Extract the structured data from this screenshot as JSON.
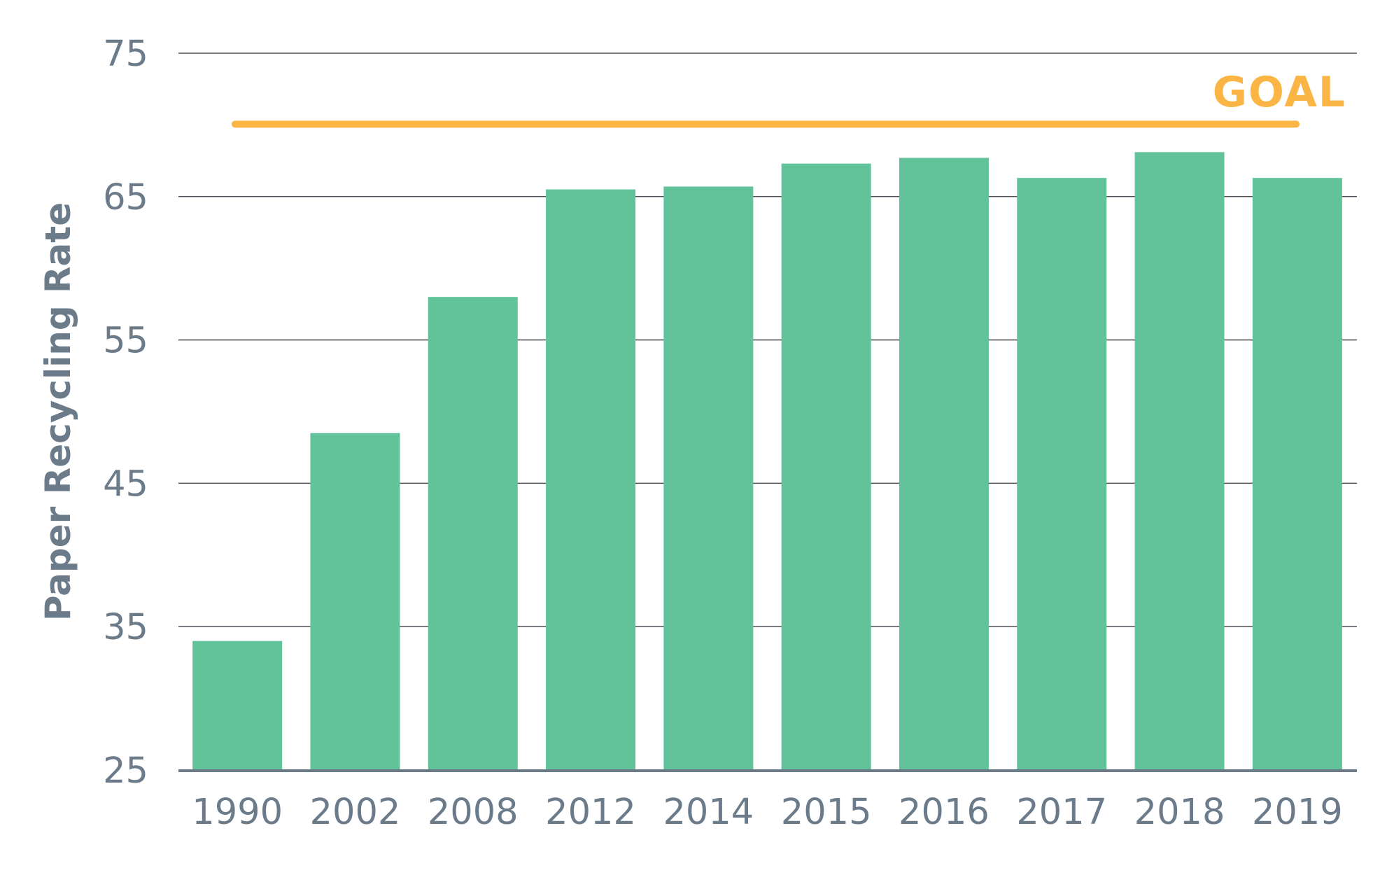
{
  "chart_data": {
    "type": "bar",
    "title": "",
    "xlabel": "",
    "ylabel": "Paper Recycling Rate",
    "ylim": [
      25,
      75
    ],
    "yticks": [
      25,
      35,
      45,
      55,
      65,
      75
    ],
    "grid": true,
    "categories": [
      "1990",
      "2002",
      "2008",
      "2012",
      "2014",
      "2015",
      "2016",
      "2017",
      "2018",
      "2019"
    ],
    "values": [
      34,
      48.5,
      58,
      65.5,
      65.7,
      67.3,
      67.7,
      66.3,
      68.1,
      66.3
    ],
    "goal": {
      "label": "GOAL",
      "value": 70
    },
    "colors": {
      "bar": "#62c39b",
      "goal": "#fbb545",
      "text": "#6b7b8a",
      "grid": "#4a4f55",
      "baseline": "#6b7b8a"
    }
  }
}
